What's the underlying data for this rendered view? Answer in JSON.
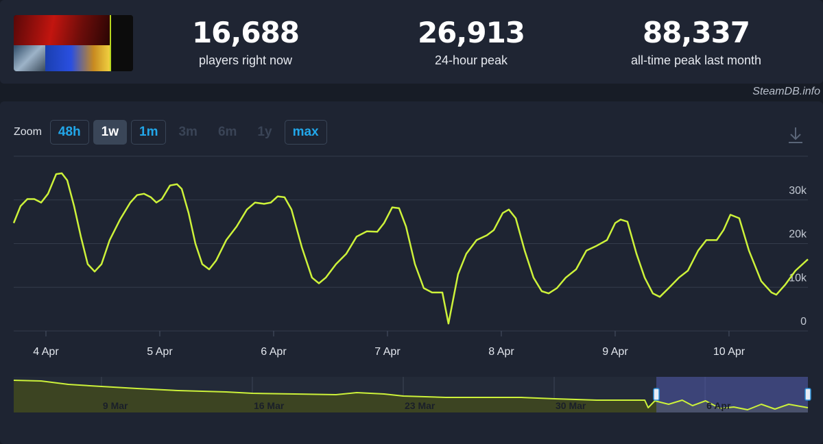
{
  "header": {
    "stats": [
      {
        "value": "16,688",
        "label": "players right now"
      },
      {
        "value": "26,913",
        "label": "24-hour peak"
      },
      {
        "value": "88,337",
        "label": "all-time peak last month"
      }
    ]
  },
  "watermark": "SteamDB.info",
  "zoom": {
    "label": "Zoom",
    "buttons": [
      {
        "text": "48h",
        "state": "enabled"
      },
      {
        "text": "1w",
        "state": "active"
      },
      {
        "text": "1m",
        "state": "enabled"
      },
      {
        "text": "3m",
        "state": "disabled"
      },
      {
        "text": "6m",
        "state": "disabled"
      },
      {
        "text": "1y",
        "state": "disabled"
      },
      {
        "text": "max",
        "state": "enabled"
      }
    ]
  },
  "chart_data": [
    {
      "type": "line",
      "color": "#cdf23a",
      "grid": true,
      "x": [
        3.717,
        3.777,
        3.837,
        3.898,
        3.958,
        4.018,
        4.09,
        4.139,
        4.187,
        4.247,
        4.307,
        4.367,
        4.428,
        4.488,
        4.56,
        4.651,
        4.741,
        4.801,
        4.861,
        4.922,
        4.97,
        5.018,
        5.09,
        5.151,
        5.193,
        5.253,
        5.313,
        5.373,
        5.434,
        5.494,
        5.584,
        5.675,
        5.765,
        5.837,
        5.916,
        5.976,
        6.036,
        6.096,
        6.157,
        6.247,
        6.337,
        6.398,
        6.458,
        6.548,
        6.639,
        6.729,
        6.819,
        6.91,
        6.97,
        7.042,
        7.102,
        7.163,
        7.241,
        7.319,
        7.392,
        7.482,
        7.536,
        7.62,
        7.693,
        7.783,
        7.873,
        7.934,
        8.012,
        8.066,
        8.127,
        8.205,
        8.283,
        8.355,
        8.416,
        8.488,
        8.566,
        8.657,
        8.747,
        8.837,
        8.928,
        9.0,
        9.048,
        9.108,
        9.187,
        9.259,
        9.331,
        9.392,
        9.47,
        9.56,
        9.639,
        9.729,
        9.801,
        9.892,
        9.952,
        10.012,
        10.09,
        10.175,
        10.283,
        10.373,
        10.416,
        10.494,
        10.584,
        10.693
      ],
      "values": [
        24700,
        28600,
        30200,
        30200,
        29400,
        31400,
        35900,
        36100,
        34500,
        28600,
        21600,
        15300,
        13600,
        15300,
        20800,
        25500,
        29400,
        31100,
        31400,
        30600,
        29400,
        30200,
        33300,
        33600,
        32500,
        27000,
        20000,
        15300,
        14100,
        16100,
        20800,
        23900,
        27800,
        29400,
        29100,
        29400,
        30800,
        30600,
        27800,
        19200,
        12200,
        10900,
        12200,
        15300,
        17700,
        21600,
        22800,
        22700,
        24700,
        28300,
        28100,
        23900,
        15300,
        9800,
        8800,
        8800,
        1700,
        13000,
        17700,
        20800,
        21900,
        23100,
        27000,
        27800,
        25800,
        18400,
        12200,
        9100,
        8600,
        9800,
        12200,
        14100,
        18400,
        19500,
        20800,
        24700,
        25500,
        25000,
        17700,
        12200,
        8600,
        7800,
        9800,
        12200,
        13800,
        18400,
        20800,
        20800,
        23100,
        26600,
        25800,
        18400,
        11400,
        8800,
        8300,
        10600,
        13800,
        16400
      ],
      "xlim": [
        3.717,
        10.693
      ],
      "xticks": [
        {
          "value": 4,
          "label": "4 Apr"
        },
        {
          "value": 5,
          "label": "5 Apr"
        },
        {
          "value": 6,
          "label": "6 Apr"
        },
        {
          "value": 7,
          "label": "7 Apr"
        },
        {
          "value": 8,
          "label": "8 Apr"
        },
        {
          "value": 9,
          "label": "9 Apr"
        },
        {
          "value": 10,
          "label": "10 Apr"
        }
      ],
      "ylim": [
        0,
        40000
      ],
      "yticks": [
        0,
        {
          "value": 10000,
          "label": "10k"
        },
        {
          "value": 20000,
          "label": "20k"
        },
        {
          "value": 30000,
          "label": "30k"
        }
      ]
    },
    {
      "type": "area",
      "color": "#cdf23a",
      "grid": true,
      "x": [
        -26.07,
        -24.8,
        -23.53,
        -22,
        -20.35,
        -18.44,
        -16.21,
        -15,
        -13.03,
        -11.12,
        -10.16,
        -8.89,
        -8,
        -6.03,
        -4.44,
        -2.53,
        -0.97,
        0.97,
        3.2,
        3.36,
        3.67,
        4.31,
        4.94,
        5.42,
        6.02,
        6.7,
        7.33,
        7.97,
        8.61,
        9.24,
        9.88,
        10.77
      ],
      "values": [
        94000,
        92000,
        82000,
        76000,
        70000,
        64000,
        60000,
        56000,
        54000,
        52000,
        58000,
        54000,
        48000,
        44000,
        44000,
        44000,
        40000,
        36000,
        36000,
        14000,
        34000,
        24000,
        36000,
        20000,
        34000,
        12000,
        16000,
        8000,
        24000,
        10000,
        24000,
        14000
      ],
      "xlim": [
        -26.07,
        10.77
      ],
      "xticks": [
        {
          "value": -22,
          "label": "9 Mar"
        },
        {
          "value": -15,
          "label": "16 Mar"
        },
        {
          "value": -8,
          "label": "23 Mar"
        },
        {
          "value": -1,
          "label": "30 Mar"
        },
        {
          "value": 6,
          "label": "6 Apr"
        }
      ],
      "ylim": [
        0,
        104000
      ]
    }
  ]
}
